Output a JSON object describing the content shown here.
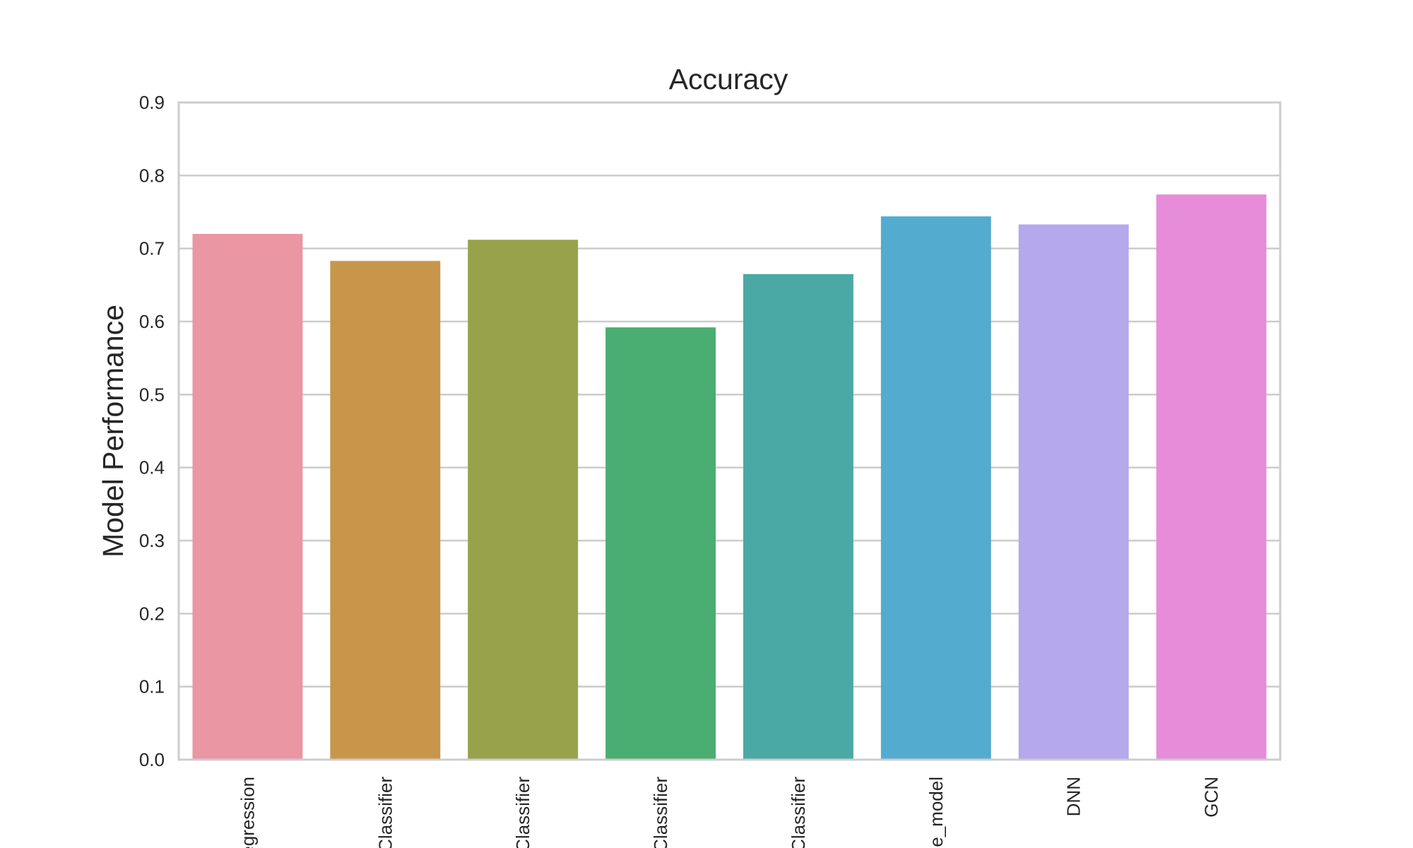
{
  "chart_data": {
    "type": "bar",
    "title": "Accuracy",
    "xlabel": "",
    "ylabel": "Model Performance",
    "ylim": [
      0,
      0.9
    ],
    "yticks": [
      "0.0",
      "0.1",
      "0.2",
      "0.3",
      "0.4",
      "0.5",
      "0.6",
      "0.7",
      "0.8",
      "0.9"
    ],
    "grid": true,
    "categories": [
      "egression",
      "Classifier",
      "Classifier",
      "Classifier",
      "Classifier",
      "le_model",
      "DNN",
      "GCN"
    ],
    "values": [
      0.72,
      0.683,
      0.712,
      0.592,
      0.665,
      0.744,
      0.733,
      0.774
    ],
    "colors": [
      "#ea96a3",
      "#c8964b",
      "#98a24a",
      "#4aae72",
      "#4ba9a5",
      "#53abcf",
      "#b5a8eb",
      "#e68cd9"
    ]
  }
}
